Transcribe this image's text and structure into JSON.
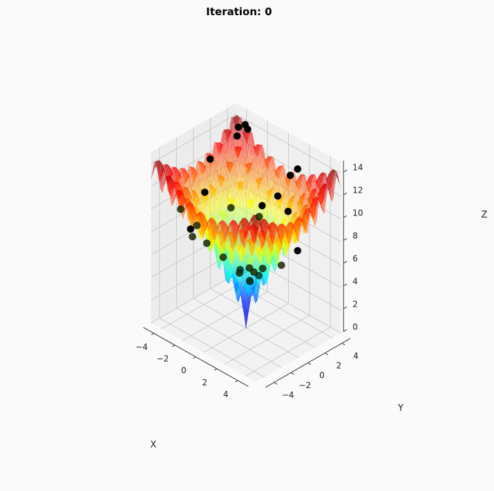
{
  "chart_data": {
    "type": "surface3d",
    "title": "Iteration: 0",
    "xlabel": "X",
    "ylabel": "Y",
    "zlabel": "Z",
    "xlim": [
      -5,
      5
    ],
    "ylim": [
      -5,
      5
    ],
    "zlim": [
      0,
      15
    ],
    "xticks": [
      "−4",
      "−2",
      "0",
      "2",
      "4"
    ],
    "xtick_values": [
      -4,
      -2,
      0,
      2,
      4
    ],
    "yticks": [
      "−4",
      "−2",
      "0",
      "2",
      "4"
    ],
    "ytick_values": [
      -4,
      -2,
      0,
      2,
      4
    ],
    "zticks": [
      "0",
      "2",
      "4",
      "6",
      "8",
      "10",
      "12",
      "14"
    ],
    "ztick_values": [
      0,
      2,
      4,
      6,
      8,
      10,
      12,
      14
    ],
    "grid": true,
    "colormap": "jet",
    "surface_function": "ackley",
    "surface_alpha": 0.5,
    "point_color": "#000000",
    "points": [
      [
        -4.2,
        4.3,
        13.6
      ],
      [
        -3.8,
        4.6,
        13.9
      ],
      [
        -3.4,
        4.4,
        13.8
      ],
      [
        -4.0,
        3.9,
        13.1
      ],
      [
        1.2,
        4.6,
        12.6
      ],
      [
        0.9,
        4.1,
        12.1
      ],
      [
        0.6,
        3.0,
        10.6
      ],
      [
        1.9,
        2.6,
        10.1
      ],
      [
        -0.4,
        2.4,
        9.5
      ],
      [
        -0.2,
        1.8,
        8.9
      ],
      [
        -2.4,
        1.2,
        8.8
      ],
      [
        -4.7,
        1.6,
        11.7
      ],
      [
        -4.0,
        0.1,
        9.8
      ],
      [
        -3.7,
        -1.2,
        7.6
      ],
      [
        -2.6,
        -1.4,
        6.7
      ],
      [
        -4.6,
        -2.0,
        8.9
      ],
      [
        -0.4,
        -0.2,
        5.0
      ],
      [
        0.3,
        0.1,
        4.2
      ],
      [
        0.6,
        -0.3,
        4.6
      ],
      [
        0.9,
        0.4,
        4.9
      ],
      [
        -2.5,
        -3.2,
        8.1
      ],
      [
        1.0,
        -2.0,
        6.2
      ],
      [
        1.8,
        -1.3,
        6.4
      ],
      [
        2.4,
        -1.0,
        6.9
      ],
      [
        2.1,
        -2.2,
        7.3
      ],
      [
        0.5,
        -3.3,
        7.9
      ],
      [
        3.7,
        -0.4,
        7.6
      ],
      [
        4.6,
        0.4,
        9.0
      ],
      [
        -1.8,
        -4.3,
        9.6
      ]
    ]
  }
}
